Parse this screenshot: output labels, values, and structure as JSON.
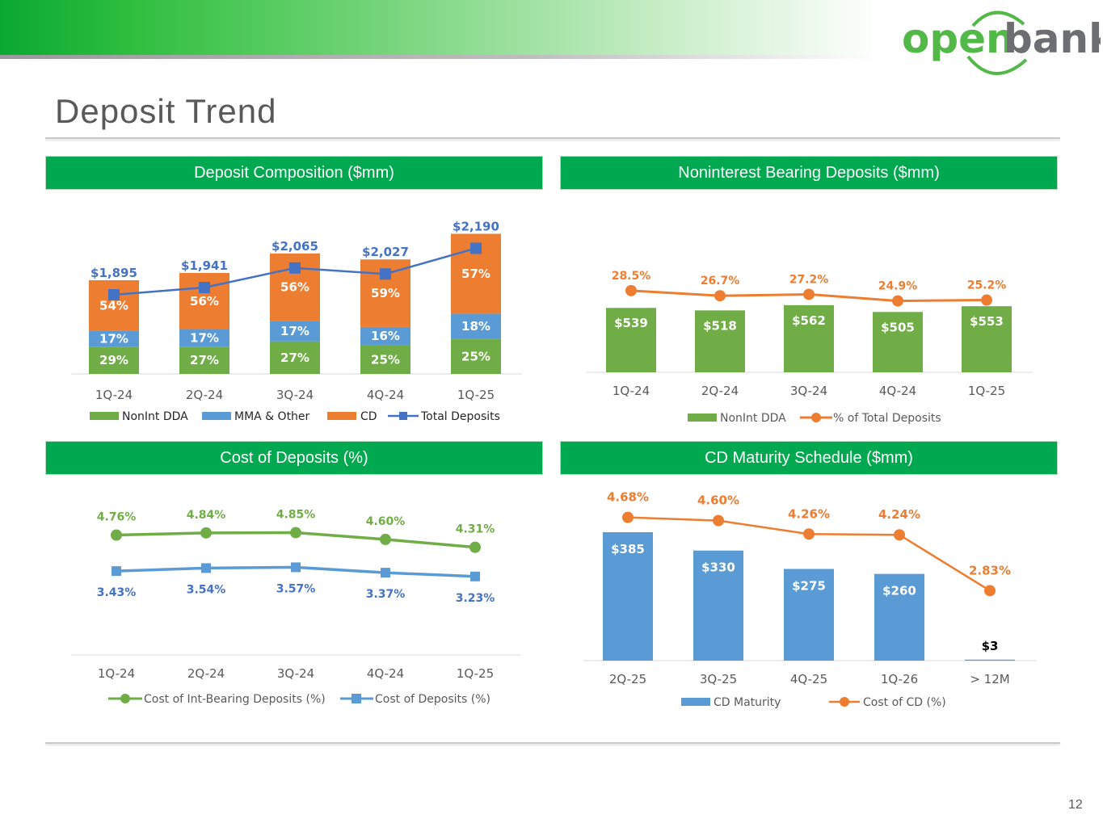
{
  "brand": {
    "name": "open bank",
    "primary": "#00a84f",
    "logo_text_1": "open",
    "logo_text_2": "bank",
    "logo_green": "#52b848",
    "logo_gray": "#6d6e71"
  },
  "page": {
    "title": "Deposit Trend",
    "number": "12"
  },
  "panels": {
    "composition": {
      "header": "Deposit Composition ($mm)"
    },
    "nonint": {
      "header": "Noninterest Bearing Deposits ($mm)"
    },
    "cost": {
      "header": "Cost of Deposits (%)"
    },
    "maturity": {
      "header": "CD Maturity Schedule ($mm)"
    }
  },
  "chart_data": [
    {
      "id": "composition",
      "type": "bar",
      "stacked": true,
      "title": "Deposit Composition ($mm)",
      "categories": [
        "1Q-24",
        "2Q-24",
        "3Q-24",
        "4Q-24",
        "1Q-25"
      ],
      "series": [
        {
          "name": "NonInt DDA",
          "kind": "bar",
          "color": "#70ad47",
          "values": [
            29,
            27,
            27,
            25,
            25
          ],
          "labels": [
            "29%",
            "27%",
            "27%",
            "25%",
            "25%"
          ]
        },
        {
          "name": "MMA & Other",
          "kind": "bar",
          "color": "#5b9bd5",
          "values": [
            17,
            17,
            17,
            16,
            18
          ],
          "labels": [
            "17%",
            "17%",
            "17%",
            "16%",
            "18%"
          ]
        },
        {
          "name": "CD",
          "kind": "bar",
          "color": "#ed7d31",
          "values": [
            54,
            56,
            56,
            59,
            57
          ],
          "labels": [
            "54%",
            "56%",
            "56%",
            "59%",
            "57%"
          ]
        },
        {
          "name": "Total Deposits",
          "kind": "line",
          "color": "#4472c4",
          "values": [
            1895,
            1941,
            2065,
            2027,
            2190
          ],
          "labels": [
            "$1,895",
            "$1,941",
            "$2,065",
            "$2,027",
            "$2,190"
          ]
        }
      ],
      "total_deposits_ylim": [
        0,
        2400
      ],
      "legend": [
        "NonInt DDA",
        "MMA & Other",
        "CD",
        "Total Deposits"
      ]
    },
    {
      "id": "nonint",
      "type": "bar",
      "title": "Noninterest Bearing Deposits ($mm)",
      "categories": [
        "1Q-24",
        "2Q-24",
        "3Q-24",
        "4Q-24",
        "1Q-25"
      ],
      "series": [
        {
          "name": "NonInt DDA",
          "kind": "bar",
          "color": "#70ad47",
          "values": [
            539,
            518,
            562,
            505,
            553
          ],
          "labels": [
            "$539",
            "$518",
            "$562",
            "$505",
            "$553"
          ]
        },
        {
          "name": "% of Total Deposits",
          "kind": "line",
          "color": "#ed7d31",
          "values": [
            28.5,
            26.7,
            27.2,
            24.9,
            25.2
          ],
          "labels": [
            "28.5%",
            "26.7%",
            "27.2%",
            "24.9%",
            "25.2%"
          ]
        }
      ],
      "ylim": [
        0,
        700
      ],
      "y2lim": [
        0,
        35
      ],
      "legend": [
        "NonInt DDA",
        "% of Total Deposits"
      ]
    },
    {
      "id": "cost",
      "type": "line",
      "title": "Cost of Deposits (%)",
      "categories": [
        "1Q-24",
        "2Q-24",
        "3Q-24",
        "4Q-24",
        "1Q-25"
      ],
      "series": [
        {
          "name": "Cost of Int-Bearing Deposits (%)",
          "marker": "circle",
          "color": "#70ad47",
          "values": [
            4.76,
            4.84,
            4.85,
            4.6,
            4.31
          ],
          "labels": [
            "4.76%",
            "4.84%",
            "4.85%",
            "4.60%",
            "4.31%"
          ]
        },
        {
          "name": "Cost of Deposits (%)",
          "marker": "square",
          "color": "#5b9bd5",
          "values": [
            3.43,
            3.54,
            3.57,
            3.37,
            3.23
          ],
          "labels": [
            "3.43%",
            "3.54%",
            "3.57%",
            "3.37%",
            "3.23%"
          ]
        }
      ],
      "ylim": [
        0,
        6
      ],
      "legend": [
        "Cost of Int-Bearing Deposits (%)",
        "Cost of Deposits (%)"
      ]
    },
    {
      "id": "maturity",
      "type": "bar",
      "title": "CD Maturity Schedule ($mm)",
      "categories": [
        "2Q-25",
        "3Q-25",
        "4Q-25",
        "1Q-26",
        "> 12M"
      ],
      "series": [
        {
          "name": "CD Maturity",
          "kind": "bar",
          "color": "#5b9bd5",
          "values": [
            385,
            330,
            275,
            260,
            3
          ],
          "labels": [
            "$385",
            "$330",
            "$275",
            "$260",
            "$3"
          ]
        },
        {
          "name": "Cost of CD (%)",
          "kind": "line",
          "color": "#ed7d31",
          "values": [
            4.68,
            4.6,
            4.26,
            4.24,
            2.83
          ],
          "labels": [
            "4.68%",
            "4.60%",
            "4.26%",
            "4.24%",
            "2.83%"
          ]
        }
      ],
      "ylim": [
        0,
        420
      ],
      "y2lim": [
        0,
        6.3
      ],
      "legend": [
        "CD Maturity",
        "Cost of CD (%)"
      ]
    }
  ]
}
